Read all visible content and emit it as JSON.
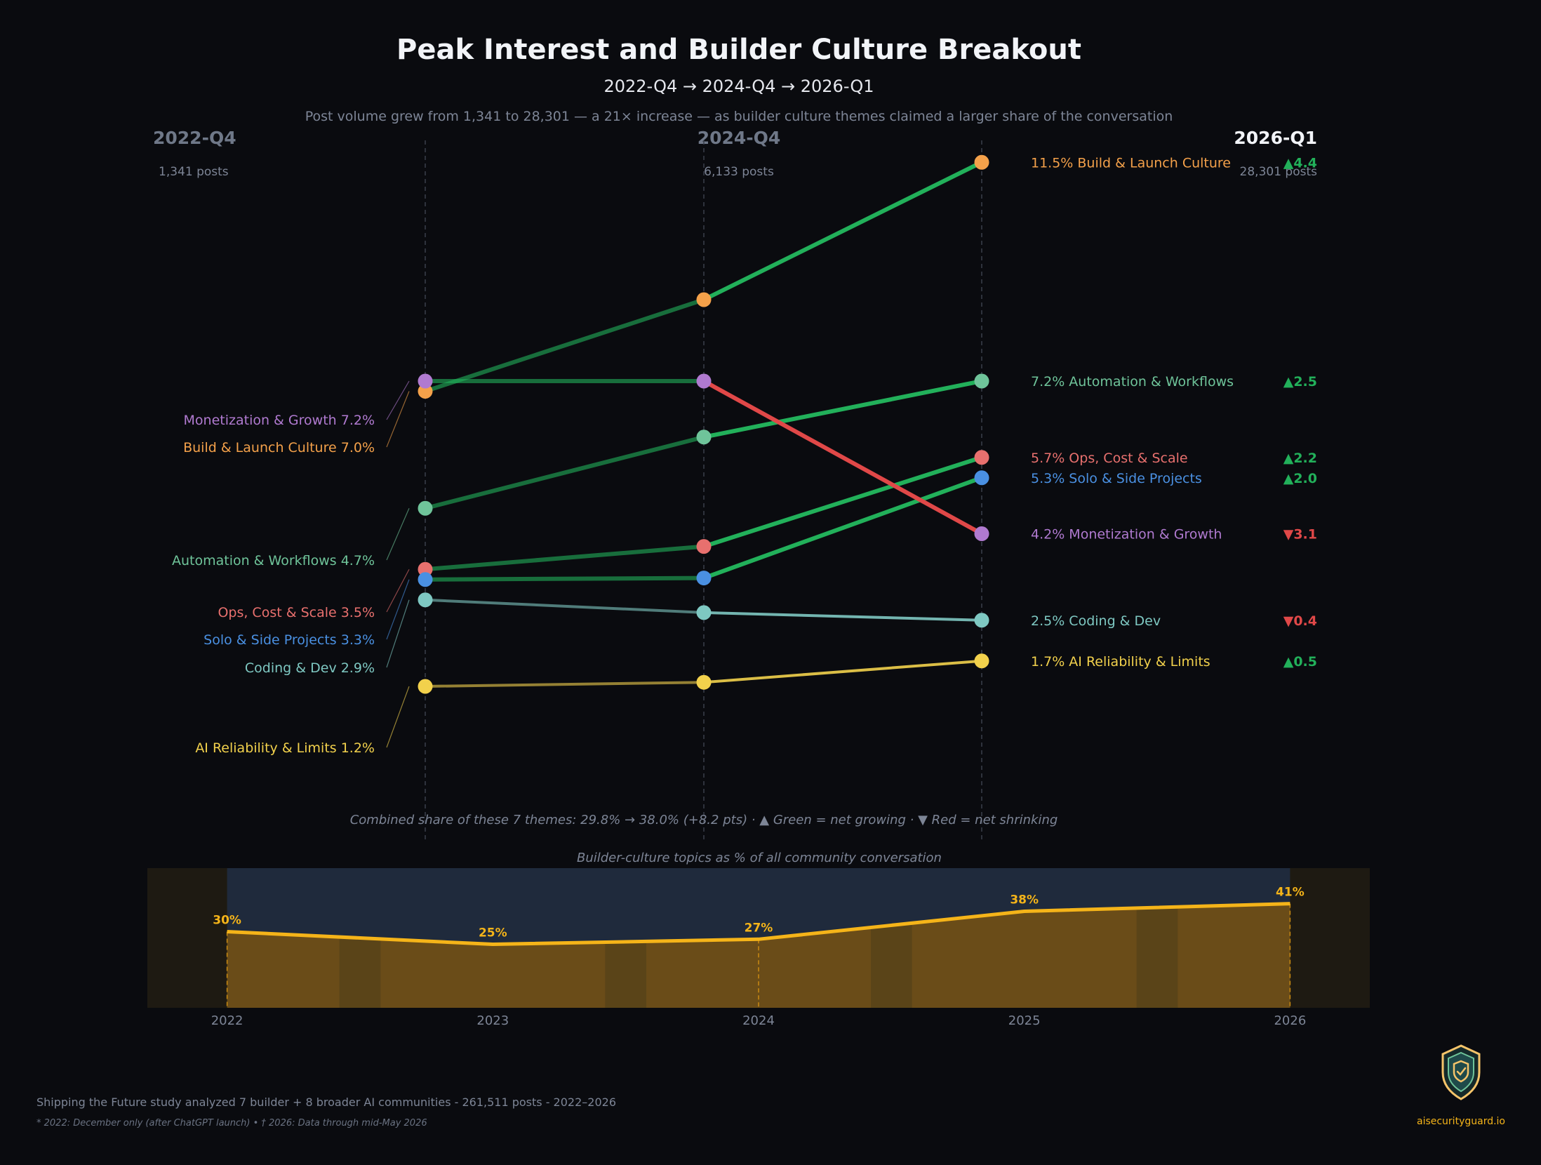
{
  "title": "Peak Interest and Builder Culture Breakout",
  "subtitle": "2022-Q4  →  2024-Q4  →  2026-Q1",
  "description": "Post volume grew from 1,341 to 28,301 — a 21× increase — as builder culture themes claimed a larger share of the conversation",
  "footnote_combined": "Combined share of these 7 themes: 29.8%  →  38.0%  (+8.2 pts)  ·  ▲ Green = net growing  ·  ▼ Red = net shrinking",
  "footer": {
    "study": "Shipping the Future study analyzed 7 builder + 8 broader AI communities - 261,511 posts - 2022–2026",
    "notes": "* 2022: December only (after ChatGPT launch)  •  † 2026: Data through mid-May 2026"
  },
  "brand": {
    "name": "aisecurityguard.io",
    "icon": "shield-check-icon"
  },
  "colors": {
    "background": "#0a0b0f",
    "up": "#22b05a",
    "down": "#e04848",
    "muted_text": "#7d8596",
    "accent_yellow": "#f5b419"
  },
  "chart_data": [
    {
      "type": "line",
      "title": "Peak Interest and Builder Culture Breakout",
      "x": [
        "2022-Q4",
        "2024-Q4",
        "2026-Q1"
      ],
      "post_counts": [
        "1,341 posts",
        "6,133 posts",
        "28,301 posts"
      ],
      "unit": "%",
      "series": [
        {
          "name": "Build & Launch Culture",
          "values": [
            7.0,
            8.8,
            11.5
          ],
          "color": "#f4a14a",
          "delta": "▲4.4",
          "direction": "up"
        },
        {
          "name": "Automation & Workflows",
          "values": [
            4.7,
            6.1,
            7.2
          ],
          "color": "#6fc49a",
          "delta": "▲2.5",
          "direction": "up"
        },
        {
          "name": "Ops, Cost & Scale",
          "values": [
            3.5,
            3.95,
            5.7
          ],
          "color": "#e8706e",
          "delta": "▲2.2",
          "direction": "up"
        },
        {
          "name": "Solo & Side Projects",
          "values": [
            3.3,
            3.33,
            5.3
          ],
          "color": "#4a90e2",
          "delta": "▲2.0",
          "direction": "up"
        },
        {
          "name": "Monetization & Growth",
          "values": [
            7.2,
            7.2,
            4.2
          ],
          "color": "#b07ad0",
          "delta": "▼3.1",
          "direction": "down"
        },
        {
          "name": "Coding & Dev",
          "values": [
            2.9,
            2.65,
            2.5
          ],
          "color": "#7ec8c2",
          "delta": "▼0.4",
          "direction": "down"
        },
        {
          "name": "AI Reliability & Limits",
          "values": [
            1.2,
            1.28,
            1.7
          ],
          "color": "#f2d14c",
          "delta": "▲0.5",
          "direction": "up"
        }
      ],
      "labels_2022": [
        "7.2%",
        "7.0%",
        "4.7%",
        "3.5%",
        "3.3%",
        "2.9%",
        "1.2%"
      ],
      "labels_2026": [
        "11.5%",
        "7.2%",
        "5.7%",
        "5.3%",
        "4.2%",
        "2.5%",
        "1.7%"
      ],
      "legend_position": "inline-left-and-right",
      "grid": false
    },
    {
      "type": "area",
      "title": "Builder-culture topics as % of all community conversation",
      "x": [
        2022,
        2023,
        2024,
        2025,
        2026
      ],
      "point_x": [
        2022,
        2023,
        2024,
        2025,
        2026
      ],
      "values": [
        30,
        25,
        27,
        38,
        41
      ],
      "value_labels": [
        "30%",
        "25%",
        "27%",
        "38%",
        "41%"
      ],
      "xlim": [
        2021.7,
        2026.3
      ],
      "ylim": [
        0,
        55
      ],
      "color": "#f5b419",
      "grid": false
    }
  ]
}
